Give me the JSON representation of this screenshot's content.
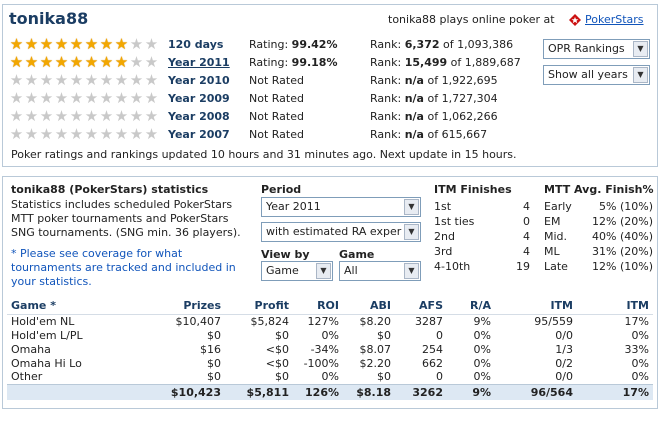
{
  "header": {
    "player_name": "tonika88",
    "plays_text": "tonika88 plays online poker at",
    "site_link": "PokerStars"
  },
  "ratings": [
    {
      "period": "120 days",
      "is_link": false,
      "stars": 8,
      "rating_label": "Rating:",
      "rating_value": "99.42%",
      "rank_label": "Rank:",
      "rank_value": "6,372",
      "rank_of": "of 1,093,386"
    },
    {
      "period": "Year 2011",
      "is_link": true,
      "stars": 8,
      "rating_label": "Rating:",
      "rating_value": "99.18%",
      "rank_label": "Rank:",
      "rank_value": "15,499",
      "rank_of": "of 1,889,687"
    },
    {
      "period": "Year 2010",
      "is_link": false,
      "stars": 0,
      "rating_label": "Not Rated",
      "rating_value": "",
      "rank_label": "Rank:",
      "rank_value": "n/a",
      "rank_of": "of 1,922,695"
    },
    {
      "period": "Year 2009",
      "is_link": false,
      "stars": 0,
      "rating_label": "Not Rated",
      "rating_value": "",
      "rank_label": "Rank:",
      "rank_value": "n/a",
      "rank_of": "of 1,727,304"
    },
    {
      "period": "Year 2008",
      "is_link": false,
      "stars": 0,
      "rating_label": "Not Rated",
      "rating_value": "",
      "rank_label": "Rank:",
      "rank_value": "n/a",
      "rank_of": "of 1,062,266"
    },
    {
      "period": "Year 2007",
      "is_link": false,
      "stars": 0,
      "rating_label": "Not Rated",
      "rating_value": "",
      "rank_label": "Rank:",
      "rank_value": "n/a",
      "rank_of": "of 615,667"
    }
  ],
  "total_stars": 10,
  "selects": {
    "rankings": "OPR Rankings",
    "years": "Show all years"
  },
  "updated_text": "Poker ratings and rankings updated 10 hours and 31 minutes ago. Next update in 15 hours.",
  "stats": {
    "title": "tonika88 (PokerStars) statistics",
    "desc": "Statistics includes scheduled PokerStars MTT poker tournaments and PokerStars SNG tournaments. (SNG min. 36 players).",
    "desc_lines": [
      "Statistics includes scheduled PokerStars",
      "MTT poker tournaments and PokerStars",
      "SNG tournaments. (SNG min. 36 players)."
    ],
    "note_lines": [
      "* Please see coverage for what",
      "tournaments are tracked and included in",
      "your statistics."
    ],
    "period_label": "Period",
    "period_value": "Year 2011",
    "estimate_value": "with estimated RA exper",
    "viewby_label": "View by",
    "viewby_value": "Game",
    "game_label": "Game",
    "game_value": "All",
    "itm_title": "ITM Finishes",
    "itm_rows": [
      {
        "label": "1st",
        "value": "4"
      },
      {
        "label": "1st ties",
        "value": "0"
      },
      {
        "label": "2nd",
        "value": "4"
      },
      {
        "label": "3rd",
        "value": "4"
      },
      {
        "label": "4-10th",
        "value": "19"
      }
    ],
    "mtt_title": "MTT Avg. Finish%",
    "mtt_rows": [
      {
        "label": "Early",
        "value": "5% (10%)"
      },
      {
        "label": "EM",
        "value": "12% (20%)"
      },
      {
        "label": "Mid.",
        "value": "40% (40%)"
      },
      {
        "label": "ML",
        "value": "31% (20%)"
      },
      {
        "label": "Late",
        "value": "12% (10%)"
      }
    ]
  },
  "table": {
    "headers": [
      "Game *",
      "Prizes",
      "Profit",
      "ROI",
      "ABI",
      "AFS",
      "R/A",
      "ITM",
      "ITM"
    ],
    "rows": [
      [
        "Hold'em NL",
        "$10,407",
        "$5,824",
        "127%",
        "$8.20",
        "3287",
        "9%",
        "95/559",
        "17%"
      ],
      [
        "Hold'em L/PL",
        "$0",
        "$0",
        "0%",
        "$0",
        "0",
        "0%",
        "0/0",
        "0%"
      ],
      [
        "Omaha",
        "$16",
        "<$0",
        "-34%",
        "$8.07",
        "254",
        "0%",
        "1/3",
        "33%"
      ],
      [
        "Omaha Hi Lo",
        "$0",
        "<$0",
        "-100%",
        "$2.20",
        "662",
        "0%",
        "0/2",
        "0%"
      ],
      [
        "Other",
        "$0",
        "$0",
        "0%",
        "$0",
        "0",
        "0%",
        "0/0",
        "0%"
      ]
    ],
    "total": [
      "",
      "$10,423",
      "$5,811",
      "126%",
      "$8.18",
      "3262",
      "9%",
      "96/564",
      "17%"
    ]
  },
  "colors": {
    "accent": "#1b3d63",
    "link": "#1155bb",
    "star": "#f2a700",
    "total_row_bg": "#dde8f3"
  }
}
